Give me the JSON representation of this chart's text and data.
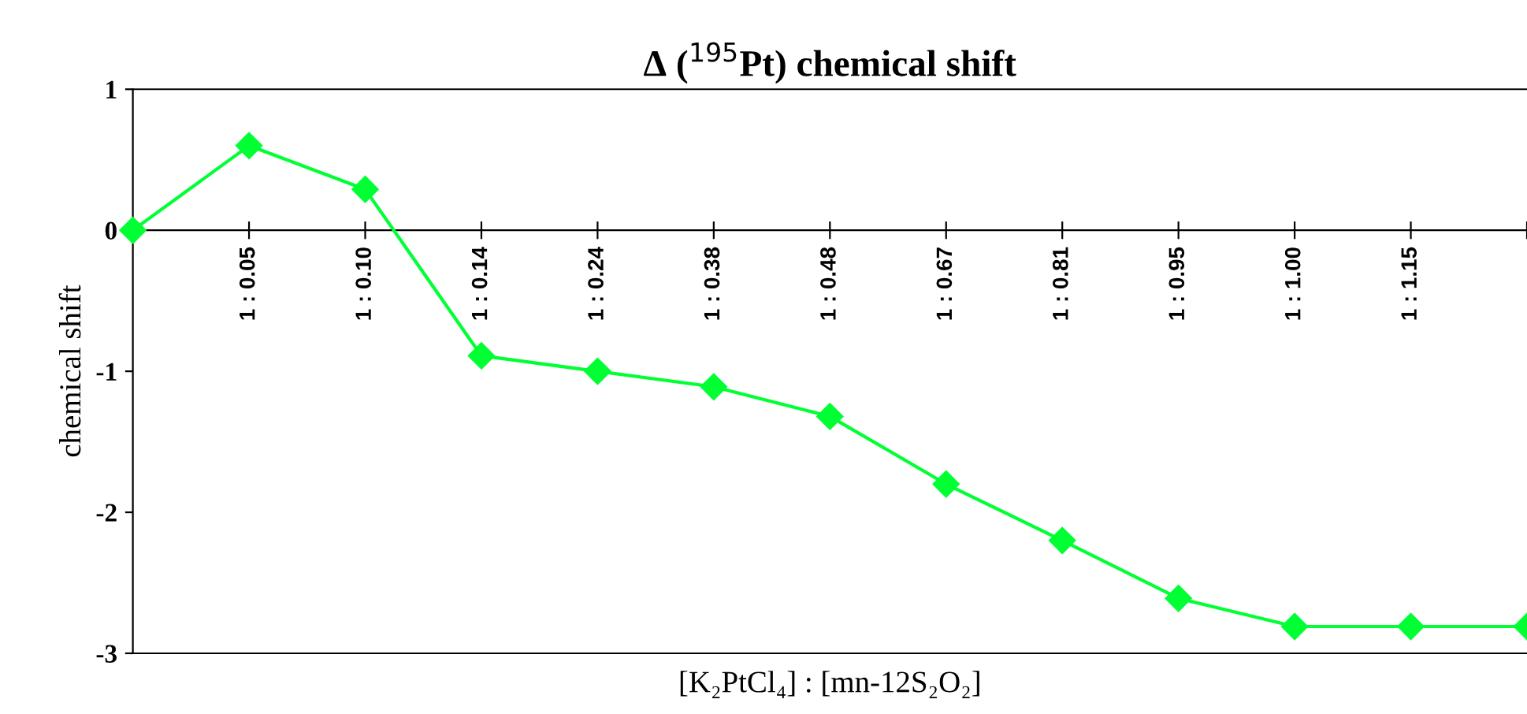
{
  "chart_data": {
    "type": "line",
    "title": "Δ ($^{195}$Pt) chemical shift",
    "xlabel": "[K₂PtCl₄] : [mn-12S₂O₂]",
    "ylabel": "chemical shift",
    "categories": [
      null,
      "1 : 0.05",
      "1 : 0.10",
      "1 : 0.14",
      "1 : 0.24",
      "1 : 0.38",
      "1 : 0.48",
      "1 : 0.67",
      "1 : 0.81",
      "1 : 0.95",
      "1 : 1.00",
      "1 : 1.15",
      null
    ],
    "series": [
      {
        "color": "#00ff33",
        "values": [
          0,
          0.6,
          0.29,
          -0.89,
          -1.0,
          -1.11,
          -1.32,
          -1.8,
          -2.2,
          -2.61,
          -2.81,
          -2.81,
          -2.81
        ]
      }
    ],
    "ylim": [
      -3,
      1
    ],
    "yticks": [
      -3,
      -2,
      -1,
      0,
      1
    ],
    "grid": false,
    "legend": false,
    "marker": "diamond",
    "line_style": "solid"
  }
}
